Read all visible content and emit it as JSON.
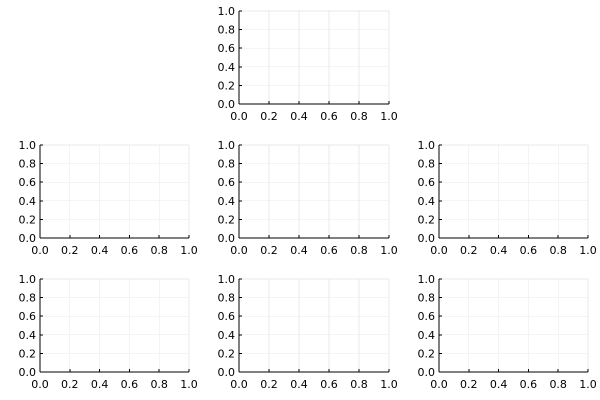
{
  "chart_data": [
    {
      "type": "line",
      "series": [],
      "title": "",
      "xlabel": "",
      "ylabel": "",
      "xlim": [
        0,
        1
      ],
      "ylim": [
        0,
        1
      ],
      "xticks": [
        "0.0",
        "0.2",
        "0.4",
        "0.6",
        "0.8",
        "1.0"
      ],
      "yticks": [
        "0.0",
        "0.2",
        "0.4",
        "0.6",
        "0.8",
        "1.0"
      ],
      "grid": true
    },
    {
      "type": "line",
      "series": [],
      "title": "",
      "xlabel": "",
      "ylabel": "",
      "xlim": [
        0,
        1
      ],
      "ylim": [
        0,
        1
      ],
      "xticks": [
        "0.0",
        "0.2",
        "0.4",
        "0.6",
        "0.8",
        "1.0"
      ],
      "yticks": [
        "0.0",
        "0.2",
        "0.4",
        "0.6",
        "0.8",
        "1.0"
      ],
      "grid": true
    },
    {
      "type": "line",
      "series": [],
      "title": "",
      "xlabel": "",
      "ylabel": "",
      "xlim": [
        0,
        1
      ],
      "ylim": [
        0,
        1
      ],
      "xticks": [
        "0.0",
        "0.2",
        "0.4",
        "0.6",
        "0.8",
        "1.0"
      ],
      "yticks": [
        "0.0",
        "0.2",
        "0.4",
        "0.6",
        "0.8",
        "1.0"
      ],
      "grid": true
    },
    {
      "type": "line",
      "series": [],
      "title": "",
      "xlabel": "",
      "ylabel": "",
      "xlim": [
        0,
        1
      ],
      "ylim": [
        0,
        1
      ],
      "xticks": [
        "0.0",
        "0.2",
        "0.4",
        "0.6",
        "0.8",
        "1.0"
      ],
      "yticks": [
        "0.0",
        "0.2",
        "0.4",
        "0.6",
        "0.8",
        "1.0"
      ],
      "grid": true
    },
    {
      "type": "line",
      "series": [],
      "title": "",
      "xlabel": "",
      "ylabel": "",
      "xlim": [
        0,
        1
      ],
      "ylim": [
        0,
        1
      ],
      "xticks": [
        "0.0",
        "0.2",
        "0.4",
        "0.6",
        "0.8",
        "1.0"
      ],
      "yticks": [
        "0.0",
        "0.2",
        "0.4",
        "0.6",
        "0.8",
        "1.0"
      ],
      "grid": true
    },
    {
      "type": "line",
      "series": [],
      "title": "",
      "xlabel": "",
      "ylabel": "",
      "xlim": [
        0,
        1
      ],
      "ylim": [
        0,
        1
      ],
      "xticks": [
        "0.0",
        "0.2",
        "0.4",
        "0.6",
        "0.8",
        "1.0"
      ],
      "yticks": [
        "0.0",
        "0.2",
        "0.4",
        "0.6",
        "0.8",
        "1.0"
      ],
      "grid": true
    },
    {
      "type": "line",
      "series": [],
      "title": "",
      "xlabel": "",
      "ylabel": "",
      "xlim": [
        0,
        1
      ],
      "ylim": [
        0,
        1
      ],
      "xticks": [
        "0.0",
        "0.2",
        "0.4",
        "0.6",
        "0.8",
        "1.0"
      ],
      "yticks": [
        "0.0",
        "0.2",
        "0.4",
        "0.6",
        "0.8",
        "1.0"
      ],
      "grid": true
    }
  ],
  "colors": {
    "axis": "#000000",
    "grid": "#e8e8e8",
    "background": "#ffffff"
  }
}
